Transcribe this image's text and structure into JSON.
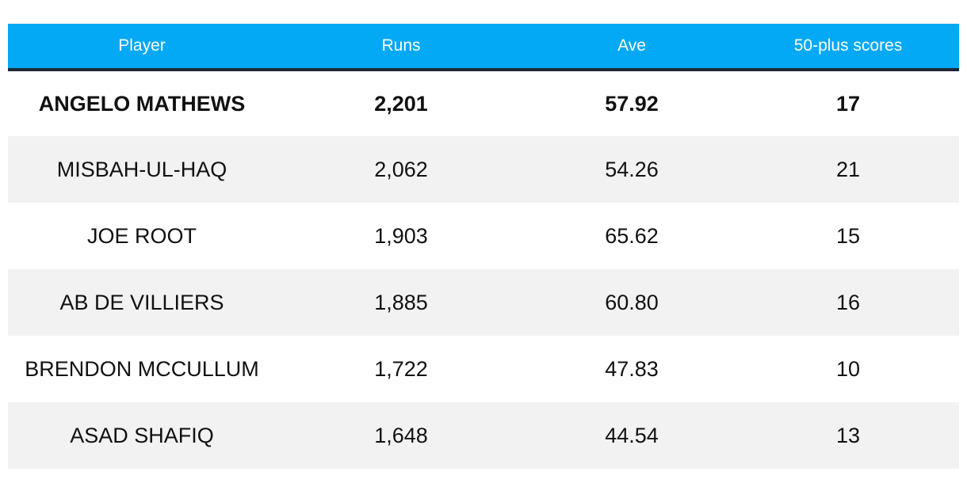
{
  "table": {
    "headers": [
      "Player",
      "Runs",
      "Ave",
      "50-plus scores"
    ],
    "rows": [
      {
        "player": "ANGELO MATHEWS",
        "runs": "2,201",
        "ave": "57.92",
        "fifty_plus": "17"
      },
      {
        "player": "MISBAH-UL-HAQ",
        "runs": "2,062",
        "ave": "54.26",
        "fifty_plus": "21"
      },
      {
        "player": "JOE ROOT",
        "runs": "1,903",
        "ave": "65.62",
        "fifty_plus": "15"
      },
      {
        "player": "AB DE VILLIERS",
        "runs": "1,885",
        "ave": "60.80",
        "fifty_plus": "16"
      },
      {
        "player": "BRENDON MCCULLUM",
        "runs": "1,722",
        "ave": "47.83",
        "fifty_plus": "10"
      },
      {
        "player": "ASAD SHAFIQ",
        "runs": "1,648",
        "ave": "44.54",
        "fifty_plus": "13"
      }
    ]
  },
  "colors": {
    "header_bg": "#03a9f4",
    "header_text": "#ffffff",
    "header_rule": "#1e2a35",
    "stripe_bg": "#f2f2f2"
  }
}
